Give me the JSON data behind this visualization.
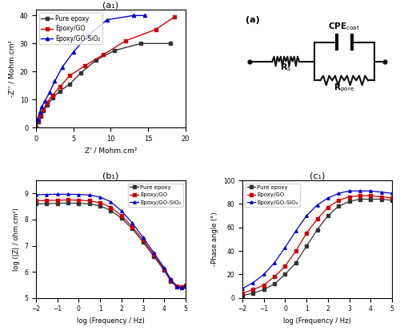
{
  "nyquist": {
    "pure_epoxy": {
      "zr": [
        0.0,
        0.3,
        0.6,
        1.0,
        1.5,
        2.2,
        3.2,
        4.5,
        6.0,
        8.0,
        10.5,
        14.0,
        18.0
      ],
      "zi": [
        0.0,
        2.0,
        4.0,
        6.0,
        8.0,
        10.5,
        13.0,
        15.5,
        19.5,
        24.0,
        27.5,
        30.0,
        30.0
      ],
      "color": "#333333",
      "marker": "s",
      "label": "Pure epoxy"
    },
    "epoxy_go": {
      "zr": [
        0.0,
        0.3,
        0.6,
        1.0,
        1.5,
        2.2,
        3.2,
        4.5,
        6.5,
        9.0,
        12.0,
        16.0,
        18.5
      ],
      "zi": [
        0.0,
        2.5,
        4.5,
        6.5,
        9.0,
        11.5,
        14.5,
        18.5,
        22.0,
        26.0,
        31.0,
        35.0,
        39.5
      ],
      "color": "#cc0000",
      "marker": "s",
      "label": "Epoxy/GO"
    },
    "epoxy_go_sio2": {
      "zr": [
        0.0,
        0.2,
        0.5,
        0.8,
        1.2,
        1.8,
        2.5,
        3.5,
        5.0,
        7.0,
        9.5,
        13.0,
        14.5
      ],
      "zi": [
        0.0,
        3.0,
        5.5,
        7.5,
        9.5,
        12.5,
        16.5,
        21.5,
        27.0,
        33.0,
        38.5,
        40.0,
        40.0
      ],
      "color": "#0000cc",
      "marker": "^",
      "label": "Epoxy/GO-SiO₂"
    },
    "xlabel": "Z' / Mohm.cm²",
    "ylabel": "-Z'' / Mohm.cm²",
    "title": "(a₁)",
    "xlim": [
      0,
      20
    ],
    "ylim": [
      0,
      42
    ],
    "xticks": [
      0,
      5,
      10,
      15,
      20
    ],
    "yticks": [
      0,
      10,
      20,
      30,
      40
    ]
  },
  "bode": {
    "freq": [
      -2,
      -1.5,
      -1,
      -0.5,
      0,
      0.5,
      1,
      1.5,
      2,
      2.5,
      3,
      3.5,
      4,
      4.3,
      4.6,
      4.8,
      5.0
    ],
    "pure_epoxy_z": [
      8.6,
      8.61,
      8.62,
      8.63,
      8.62,
      8.6,
      8.52,
      8.35,
      8.05,
      7.65,
      7.15,
      6.6,
      6.05,
      5.65,
      5.42,
      5.38,
      5.45
    ],
    "epoxy_go_z": [
      8.72,
      8.73,
      8.74,
      8.75,
      8.74,
      8.72,
      8.64,
      8.47,
      8.15,
      7.73,
      7.22,
      6.67,
      6.1,
      5.7,
      5.45,
      5.42,
      5.48
    ],
    "epoxy_go_sio2_z": [
      8.95,
      8.96,
      8.97,
      8.97,
      8.96,
      8.94,
      8.86,
      8.68,
      8.33,
      7.88,
      7.32,
      6.75,
      6.15,
      5.72,
      5.42,
      5.38,
      5.45
    ],
    "pure_epoxy_color": "#333333",
    "epoxy_go_color": "#cc0000",
    "epoxy_go_sio2_color": "#0000cc",
    "xlabel": "log (Frequency / Hz)",
    "ylabel": "log (|Z| / ohm.cm²)",
    "title": "(b₁)",
    "xlim": [
      -2,
      5
    ],
    "ylim": [
      5,
      9.5
    ],
    "xticks": [
      -2,
      -1,
      0,
      1,
      2,
      3,
      4,
      5
    ],
    "yticks": [
      5,
      6,
      7,
      8,
      9
    ]
  },
  "phase": {
    "freq": [
      -2,
      -1.5,
      -1,
      -0.5,
      0,
      0.5,
      1,
      1.5,
      2,
      2.5,
      3,
      3.5,
      4,
      4.5,
      5
    ],
    "pure_epoxy_p": [
      2,
      4,
      7,
      12,
      20,
      30,
      44,
      58,
      70,
      78,
      82,
      84,
      84,
      84,
      83
    ],
    "epoxy_go_p": [
      4,
      7,
      11,
      18,
      27,
      40,
      55,
      67,
      77,
      83,
      86,
      87,
      87,
      86,
      85
    ],
    "epoxy_go_sio2_p": [
      8,
      13,
      20,
      30,
      43,
      57,
      70,
      79,
      85,
      89,
      91,
      91,
      91,
      90,
      89
    ],
    "pure_epoxy_color": "#333333",
    "epoxy_go_color": "#cc0000",
    "epoxy_go_sio2_color": "#0000cc",
    "xlabel": "log (Frequency / Hz)",
    "ylabel": "-Phase angle (°)",
    "title": "(c₁)",
    "xlim": [
      -2,
      5
    ],
    "ylim": [
      0,
      100
    ],
    "xticks": [
      -2,
      -1,
      0,
      1,
      2,
      3,
      4,
      5
    ],
    "yticks": [
      0,
      20,
      40,
      60,
      80,
      100
    ]
  }
}
